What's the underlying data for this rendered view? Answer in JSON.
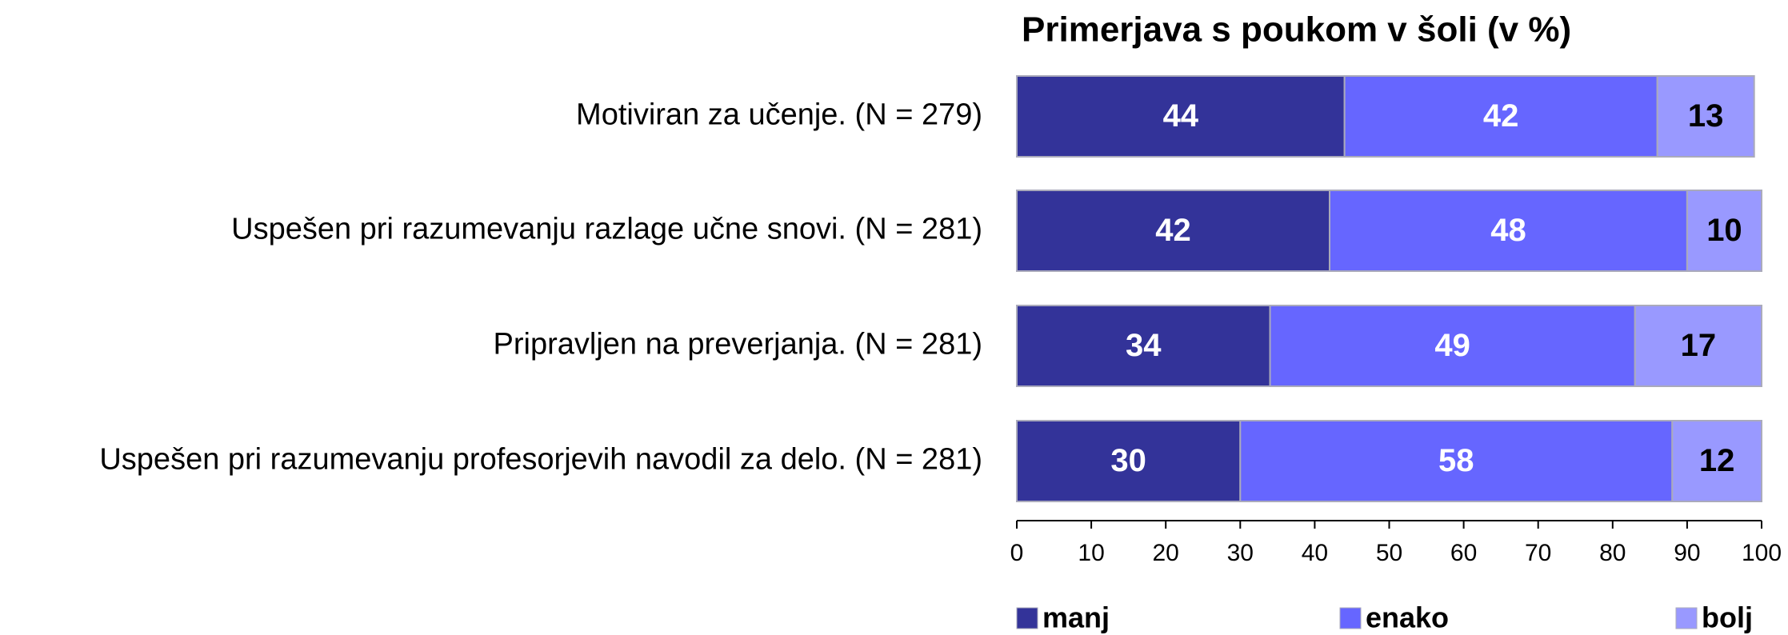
{
  "chart_data": {
    "type": "stacked_bar_horizontal",
    "title": "Primerjava s poukom v šoli (v %)",
    "categories": [
      "Motiviran za učenje. (N = 279)",
      "Uspešen pri razumevanju razlage učne snovi. (N = 281)",
      "Pripravljen na preverjanja. (N = 281)",
      "Uspešen pri razumevanju profesorjevih navodil za delo. (N = 281)"
    ],
    "series": [
      {
        "name": "manj",
        "color": "#333399",
        "label_color": "#ffffff",
        "values": [
          44,
          42,
          34,
          30
        ]
      },
      {
        "name": "enako",
        "color": "#6666ff",
        "label_color": "#ffffff",
        "values": [
          42,
          48,
          49,
          58
        ]
      },
      {
        "name": "bolj",
        "color": "#9999ff",
        "label_color": "#000000",
        "values": [
          13,
          10,
          17,
          12
        ]
      }
    ],
    "xlim": [
      0,
      100
    ],
    "xticks": [
      0,
      10,
      20,
      30,
      40,
      50,
      60,
      70,
      80,
      90,
      100
    ],
    "grid": false,
    "legend": "bottom"
  }
}
